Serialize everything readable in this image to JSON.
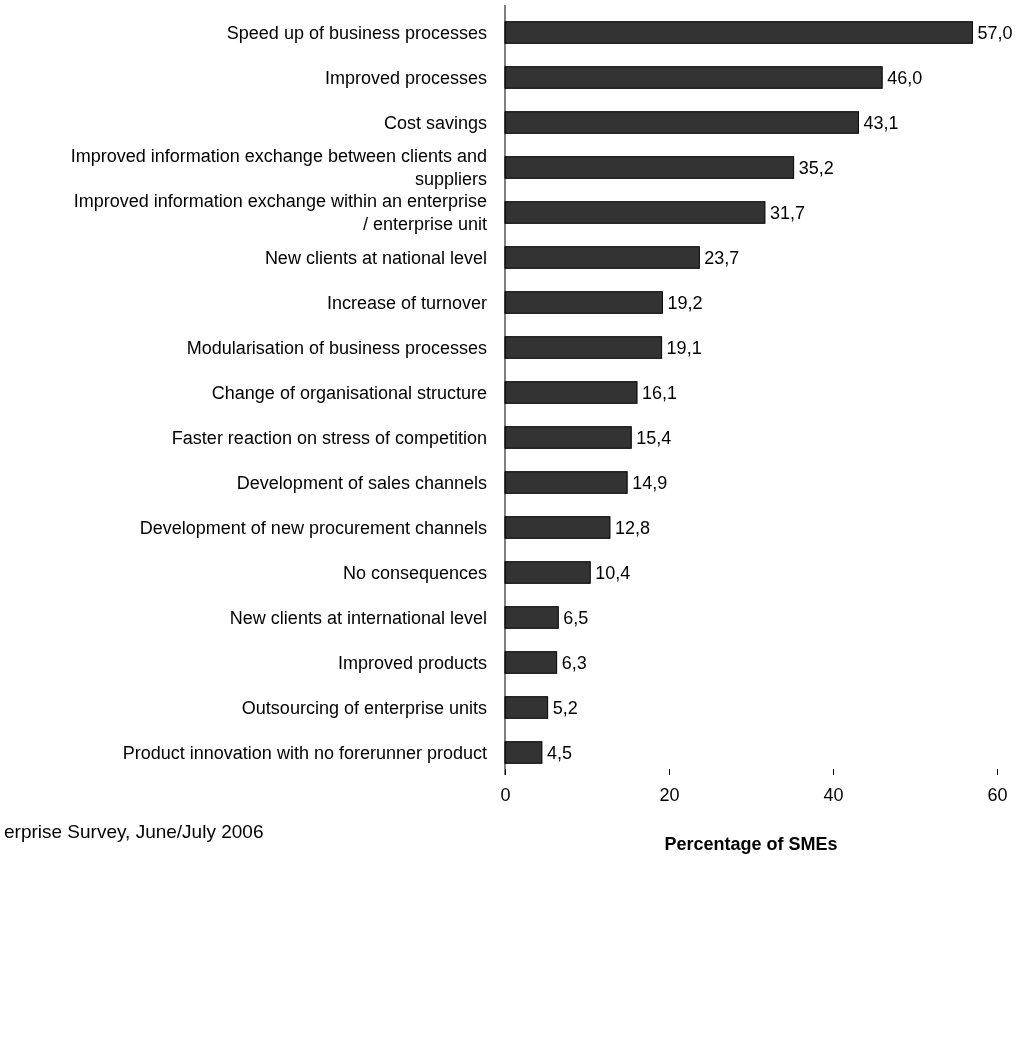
{
  "chart_data": {
    "type": "bar",
    "orientation": "horizontal",
    "xlabel": "Percentage of SMEs",
    "categories": [
      "Speed up of business processes",
      "Improved processes",
      "Cost savings",
      "Improved information exchange between clients and suppliers",
      "Improved information exchange within an enterprise / enterprise unit",
      "New clients at national level",
      "Increase of turnover",
      "Modularisation of business processes",
      "Change of organisational structure",
      "Faster reaction on stress of competition",
      "Development of sales channels",
      "Development of new procurement channels",
      "No consequences",
      "New clients at international level",
      "Improved products",
      "Outsourcing of enterprise units",
      "Product innovation with no forerunner product"
    ],
    "values": [
      57.0,
      46.0,
      43.1,
      35.2,
      31.7,
      23.7,
      19.2,
      19.1,
      16.1,
      15.4,
      14.9,
      12.8,
      10.4,
      6.5,
      6.3,
      5.2,
      4.5
    ],
    "value_labels": [
      "57,0",
      "46,0",
      "43,1",
      "35,2",
      "31,7",
      "23,7",
      "19,2",
      "19,1",
      "16,1",
      "15,4",
      "14,9",
      "12,8",
      "10,4",
      "6,5",
      "6,3",
      "5,2",
      "4,5"
    ],
    "color": "#333333",
    "xlim": [
      0,
      60
    ],
    "xticks": [
      0,
      20,
      40,
      60
    ],
    "grid": false,
    "annotations": [
      "erprise Survey, June/July 2006"
    ]
  }
}
